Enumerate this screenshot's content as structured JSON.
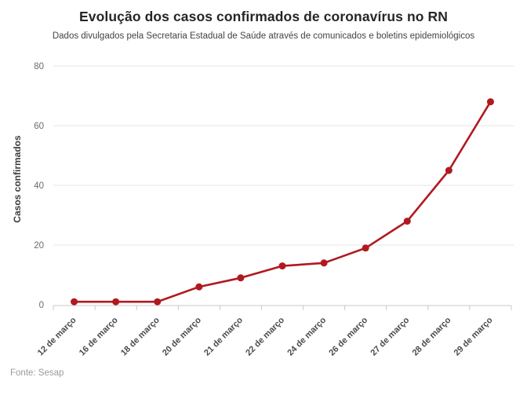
{
  "chart_data": {
    "type": "line",
    "title": "Evolução dos casos confirmados de coronavírus no RN",
    "subtitle": "Dados divulgados pela Secretaria Estadual de Saúde através de comunicados e boletins epidemiológicos",
    "ylabel": "Casos confirmados",
    "source": "Fonte: Sesap",
    "categories": [
      "12 de março",
      "16 de março",
      "18 de março",
      "20 de março",
      "21 de março",
      "22 de março",
      "24 de março",
      "26 de março",
      "27 de março",
      "28 de março",
      "29 de março"
    ],
    "values": [
      1,
      1,
      1,
      6,
      9,
      13,
      14,
      19,
      28,
      45,
      68
    ],
    "ylim": [
      0,
      80
    ],
    "yticks": [
      0,
      20,
      40,
      60,
      80
    ],
    "grid": true,
    "legend_position": "none",
    "colors": {
      "line": "#b0191f",
      "marker": "#b0191f",
      "grid": "#e4e4e4",
      "axis": "#c9c9c9",
      "tick_label": "#6b6b6b",
      "category_label": "#4a4a4a",
      "title": "#262626",
      "subtitle": "#434343",
      "source": "#9b9b9b",
      "ylabel": "#3d3d3d",
      "background": "#ffffff"
    }
  }
}
